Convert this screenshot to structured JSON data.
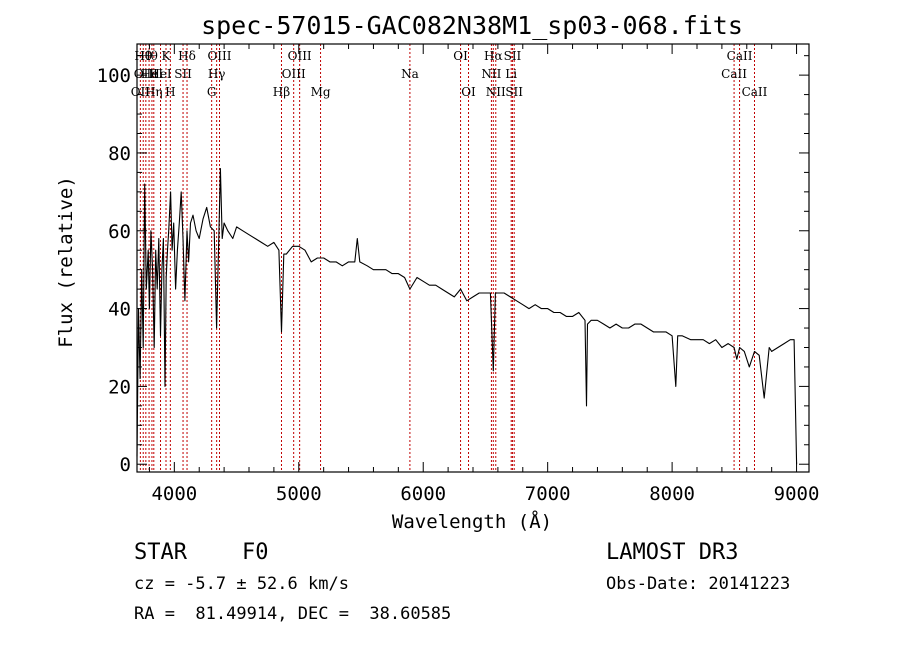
{
  "chart_data": {
    "type": "line",
    "title": "spec-57015-GAC082N38M1_sp03-068.fits",
    "xlabel": "Wavelength (Å)",
    "ylabel": "Flux (relative)",
    "xlim": [
      3700,
      9100
    ],
    "ylim": [
      -2,
      108
    ],
    "xticks": [
      4000,
      5000,
      6000,
      7000,
      8000,
      9000
    ],
    "yticks": [
      0,
      20,
      40,
      60,
      80,
      100
    ],
    "x_minor_step": 200,
    "y_minor_step": 5,
    "series": [
      {
        "name": "spectrum",
        "color": "#000000",
        "x": [
          3700,
          3712,
          3725,
          3738,
          3750,
          3762,
          3775,
          3790,
          3800,
          3812,
          3825,
          3838,
          3850,
          3862,
          3875,
          3889,
          3900,
          3912,
          3925,
          3935,
          3945,
          3955,
          3970,
          3982,
          3995,
          4010,
          4025,
          4040,
          4055,
          4070,
          4085,
          4102,
          4115,
          4130,
          4150,
          4175,
          4200,
          4230,
          4260,
          4290,
          4320,
          4340,
          4355,
          4370,
          4385,
          4400,
          4430,
          4470,
          4500,
          4550,
          4600,
          4650,
          4700,
          4750,
          4800,
          4840,
          4861,
          4880,
          4900,
          4950,
          5000,
          5050,
          5100,
          5150,
          5200,
          5250,
          5300,
          5350,
          5400,
          5450,
          5470,
          5490,
          5550,
          5600,
          5650,
          5700,
          5750,
          5800,
          5850,
          5893,
          5950,
          6000,
          6050,
          6100,
          6150,
          6200,
          6250,
          6300,
          6350,
          6400,
          6450,
          6500,
          6540,
          6563,
          6580,
          6620,
          6650,
          6700,
          6750,
          6800,
          6850,
          6900,
          6950,
          7000,
          7050,
          7100,
          7150,
          7200,
          7250,
          7300,
          7312,
          7320,
          7350,
          7400,
          7450,
          7500,
          7550,
          7600,
          7650,
          7700,
          7750,
          7800,
          7850,
          7900,
          7950,
          8000,
          8030,
          8045,
          8080,
          8150,
          8200,
          8250,
          8300,
          8350,
          8400,
          8450,
          8498,
          8520,
          8542,
          8580,
          8620,
          8662,
          8700,
          8740,
          8780,
          8800,
          8850,
          8900,
          8950,
          8980,
          9000
        ],
        "values": [
          2,
          40,
          22,
          50,
          30,
          72,
          45,
          55,
          40,
          60,
          50,
          30,
          55,
          45,
          58,
          33,
          50,
          58,
          20,
          48,
          55,
          60,
          70,
          55,
          62,
          45,
          55,
          62,
          70,
          58,
          42,
          60,
          52,
          62,
          64,
          60,
          58,
          63,
          66,
          61,
          60,
          35,
          55,
          76,
          58,
          62,
          60,
          58,
          61,
          60,
          59,
          58,
          57,
          56,
          57,
          55,
          34,
          54,
          54,
          56,
          56,
          55,
          52,
          53,
          53,
          52,
          52,
          51,
          52,
          52,
          58,
          52,
          51,
          50,
          50,
          50,
          49,
          49,
          48,
          45,
          48,
          47,
          46,
          46,
          45,
          44,
          43,
          45,
          42,
          43,
          44,
          44,
          44,
          24,
          44,
          44,
          44,
          43,
          42,
          41,
          40,
          41,
          40,
          40,
          39,
          39,
          38,
          38,
          39,
          37,
          15,
          36,
          37,
          37,
          36,
          35,
          36,
          35,
          35,
          36,
          36,
          35,
          34,
          34,
          34,
          33,
          20,
          33,
          33,
          32,
          32,
          32,
          31,
          32,
          30,
          31,
          30,
          27,
          30,
          29,
          25,
          29,
          28,
          17,
          30,
          29,
          30,
          31,
          32,
          32,
          0
        ]
      }
    ],
    "line_markers": {
      "color": "#c00000",
      "lines": [
        {
          "wavelength": 3727,
          "label": "OII",
          "row": 3
        },
        {
          "wavelength": 3750,
          "label": "Hθ",
          "row": 1
        },
        {
          "wavelength": 3771,
          "label": "OIII",
          "row": 2
        },
        {
          "wavelength": 3797,
          "label": "Hθ",
          "row": 1
        },
        {
          "wavelength": 3820,
          "label": "HeI",
          "row": 2
        },
        {
          "wavelength": 3835,
          "label": "Hη",
          "row": 3
        },
        {
          "wavelength": 3889,
          "label": "HeI",
          "row": 2
        },
        {
          "wavelength": 3933,
          "label": "K",
          "row": 1
        },
        {
          "wavelength": 3968,
          "label": "H",
          "row": 3
        },
        {
          "wavelength": 4070,
          "label": "SII",
          "row": 2
        },
        {
          "wavelength": 4102,
          "label": "Hδ",
          "row": 1
        },
        {
          "wavelength": 4300,
          "label": "G",
          "row": 3
        },
        {
          "wavelength": 4340,
          "label": "Hγ",
          "row": 2
        },
        {
          "wavelength": 4363,
          "label": "OIII",
          "row": 1
        },
        {
          "wavelength": 4861,
          "label": "Hβ",
          "row": 3
        },
        {
          "wavelength": 4959,
          "label": "OIII",
          "row": 2
        },
        {
          "wavelength": 5007,
          "label": "OIII",
          "row": 1
        },
        {
          "wavelength": 5175,
          "label": "Mg",
          "row": 3
        },
        {
          "wavelength": 5893,
          "label": "Na",
          "row": 2
        },
        {
          "wavelength": 6300,
          "label": "OI",
          "row": 1
        },
        {
          "wavelength": 6364,
          "label": "OI",
          "row": 3
        },
        {
          "wavelength": 6548,
          "label": "NII",
          "row": 2
        },
        {
          "wavelength": 6563,
          "label": "Hα",
          "row": 1
        },
        {
          "wavelength": 6583,
          "label": "NII",
          "row": 3
        },
        {
          "wavelength": 6707,
          "label": "Li",
          "row": 2
        },
        {
          "wavelength": 6717,
          "label": "SII",
          "row": 1
        },
        {
          "wavelength": 6731,
          "label": "SII",
          "row": 3
        },
        {
          "wavelength": 8498,
          "label": "CaII",
          "row": 2
        },
        {
          "wavelength": 8542,
          "label": "CaII",
          "row": 1
        },
        {
          "wavelength": 8662,
          "label": "CaII",
          "row": 3
        }
      ]
    }
  },
  "info": {
    "object_class": "STAR",
    "subclass": "F0",
    "survey": "LAMOST DR3",
    "redshift": "cz = -5.7 ± 52.6 km/s",
    "obs_date": "Obs-Date: 20141223",
    "coords": "RA =  81.49914, DEC =  38.60585"
  }
}
